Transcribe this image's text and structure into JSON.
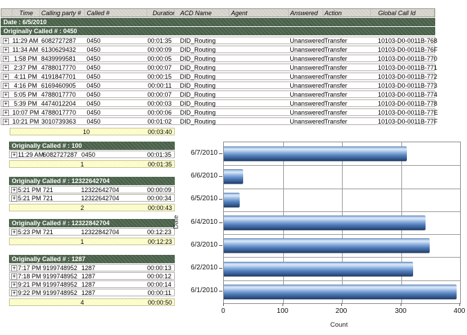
{
  "report": {
    "columns": [
      "",
      "Time",
      "Calling party #",
      "Called #",
      "Duration",
      "ACD Name",
      "Agent",
      "Answered",
      "Action",
      "Global Call Id"
    ],
    "date_group_label": "Date : 6/5/2010",
    "expand_icon_glyph": "+",
    "main_group": {
      "label": "Originally Called # : 0450",
      "rows": [
        {
          "time": "11:29 AM",
          "calling_party": "6082727287",
          "called": "0450",
          "duration": "00:01:35",
          "acd_name": "DID_Routing",
          "agent": "",
          "answered": "Unanswered",
          "action": "Transfer",
          "global_call_id": "10103-D0-0011B-768"
        },
        {
          "time": "11:34 AM",
          "calling_party": "6130629432",
          "called": "0450",
          "duration": "00:00:09",
          "acd_name": "DID_Routing",
          "agent": "",
          "answered": "Unanswered",
          "action": "Transfer",
          "global_call_id": "10103-D0-0011B-76F"
        },
        {
          "time": "1:58 PM",
          "calling_party": "8439999581",
          "called": "0450",
          "duration": "00:00:05",
          "acd_name": "DID_Routing",
          "agent": "",
          "answered": "Unanswered",
          "action": "Transfer",
          "global_call_id": "10103-D0-0011B-770"
        },
        {
          "time": "2:37 PM",
          "calling_party": "4788017770",
          "called": "0450",
          "duration": "00:00:07",
          "acd_name": "DID_Routing",
          "agent": "",
          "answered": "Unanswered",
          "action": "Transfer",
          "global_call_id": "10103-D0-0011B-771"
        },
        {
          "time": "4:11 PM",
          "calling_party": "4191847701",
          "called": "0450",
          "duration": "00:00:15",
          "acd_name": "DID_Routing",
          "agent": "",
          "answered": "Unanswered",
          "action": "Transfer",
          "global_call_id": "10103-D0-0011B-772"
        },
        {
          "time": "4:16 PM",
          "calling_party": "6169460905",
          "called": "0450",
          "duration": "00:00:11",
          "acd_name": "DID_Routing",
          "agent": "",
          "answered": "Unanswered",
          "action": "Transfer",
          "global_call_id": "10103-D0-0011B-773"
        },
        {
          "time": "5:05 PM",
          "calling_party": "4788017770",
          "called": "0450",
          "duration": "00:00:07",
          "acd_name": "DID_Routing",
          "agent": "",
          "answered": "Unanswered",
          "action": "Transfer",
          "global_call_id": "10103-D0-0011B-774"
        },
        {
          "time": "5:39 PM",
          "calling_party": "4474012204",
          "called": "0450",
          "duration": "00:00:03",
          "acd_name": "DID_Routing",
          "agent": "",
          "answered": "Unanswered",
          "action": "Transfer",
          "global_call_id": "10103-D0-0011B-778"
        },
        {
          "time": "10:07 PM",
          "calling_party": "4788017770",
          "called": "0450",
          "duration": "00:00:06",
          "acd_name": "DID_Routing",
          "agent": "",
          "answered": "Unanswered",
          "action": "Transfer",
          "global_call_id": "10103-D0-0011B-77E"
        },
        {
          "time": "10:21 PM",
          "calling_party": "3010739363",
          "called": "0450",
          "duration": "00:01:02",
          "acd_name": "DID_Routing",
          "agent": "",
          "answered": "Unanswered",
          "action": "Transfer",
          "global_call_id": "10103-D0-0011B-77F"
        }
      ],
      "summary": {
        "count": "10",
        "total_duration": "00:03:40"
      }
    },
    "sub_groups": [
      {
        "label": "Originally Called # : 100",
        "rows": [
          {
            "time": "11:29 AM",
            "calling_party": "6082727287",
            "called": "0450",
            "duration": "00:01:35"
          }
        ],
        "summary": {
          "count": "1",
          "total_duration": "00:01:35"
        }
      },
      {
        "label": "Originally Called # : 12322642704",
        "rows": [
          {
            "time": "5:21 PM",
            "calling_party": "721",
            "called": "12322642704",
            "duration": "00:00:09"
          },
          {
            "time": "5:21 PM",
            "calling_party": "721",
            "called": "12322642704",
            "duration": "00:00:34"
          }
        ],
        "summary": {
          "count": "2",
          "total_duration": "00:00:43"
        }
      },
      {
        "label": "Originally Called # : 12322842704",
        "rows": [
          {
            "time": "5:23 PM",
            "calling_party": "721",
            "called": "12322842704",
            "duration": "00:12:23"
          }
        ],
        "summary": {
          "count": "1",
          "total_duration": "00:12:23"
        }
      },
      {
        "label": "Originally Called # : 1287",
        "rows": [
          {
            "time": "7:17 PM",
            "calling_party": "9199748952",
            "called": "1287",
            "duration": "00:00:13"
          },
          {
            "time": "7:18 PM",
            "calling_party": "9199748952",
            "called": "1287",
            "duration": "00:00:12"
          },
          {
            "time": "9:21 PM",
            "calling_party": "9199748952",
            "called": "1287",
            "duration": "00:00:14"
          },
          {
            "time": "9:22 PM",
            "calling_party": "9199748952",
            "called": "1287",
            "duration": "00:00:11"
          }
        ],
        "summary": {
          "count": "4",
          "total_duration": "00:00:50"
        }
      }
    ]
  },
  "chart_data": {
    "type": "bar",
    "orientation": "horizontal",
    "title": "",
    "xlabel": "Count",
    "ylabel": "Date",
    "categories": [
      "6/7/2010",
      "6/6/2010",
      "6/5/2010",
      "6/4/2010",
      "6/3/2010",
      "6/2/2010",
      "6/1/2010"
    ],
    "values": [
      310,
      33,
      27,
      342,
      349,
      320,
      394
    ],
    "xlim": [
      0,
      400
    ],
    "xticks": [
      0,
      100,
      200,
      300,
      400
    ],
    "grid": true,
    "legend": false,
    "bar_color": "#5e8cc8"
  },
  "colors": {
    "group_header_bg": "#4b634b",
    "summary_bg": "#ffffcd",
    "column_header_bg": "#d6d3cc",
    "bar_blue": "#5e8cc8",
    "grid_line": "#9a9a9a"
  }
}
